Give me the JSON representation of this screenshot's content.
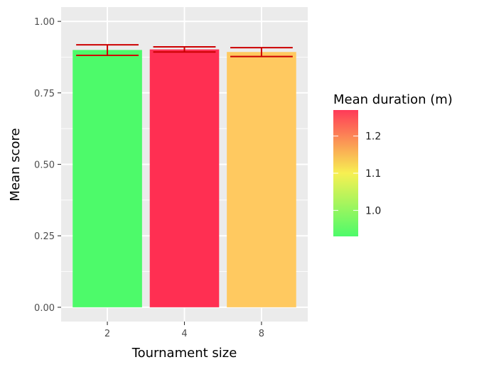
{
  "chart_data": {
    "type": "bar",
    "categories": [
      "2",
      "4",
      "8"
    ],
    "values": [
      0.9,
      0.902,
      0.893
    ],
    "error_bars": [
      {
        "low": 0.881,
        "high": 0.918
      },
      {
        "low": 0.893,
        "high": 0.911
      },
      {
        "low": 0.877,
        "high": 0.908
      }
    ],
    "fill_values": [
      0.93,
      1.27,
      1.16
    ],
    "xlabel": "Tournament size",
    "ylabel": "Mean score",
    "ylim": [
      -0.05,
      1.05
    ],
    "yticks": [
      0.0,
      0.25,
      0.5,
      0.75,
      1.0
    ],
    "ytick_labels": [
      "0.00",
      "0.25",
      "0.50",
      "0.75",
      "1.00"
    ],
    "grid": true,
    "error_bar_color": "#cc0000",
    "bar_colors": [
      "#4dfa6a",
      "#ff2f52",
      "#ffc960"
    ],
    "legend": {
      "title": "Mean duration (m)",
      "position": "right",
      "range": [
        0.93,
        1.27
      ],
      "ticks": [
        1.0,
        1.1,
        1.2
      ],
      "tick_labels": [
        "1.0",
        "1.1",
        "1.2"
      ],
      "colors": {
        "low": "#4dfa6a",
        "mid": "#f7f052",
        "high": "#ff3a58"
      }
    }
  }
}
